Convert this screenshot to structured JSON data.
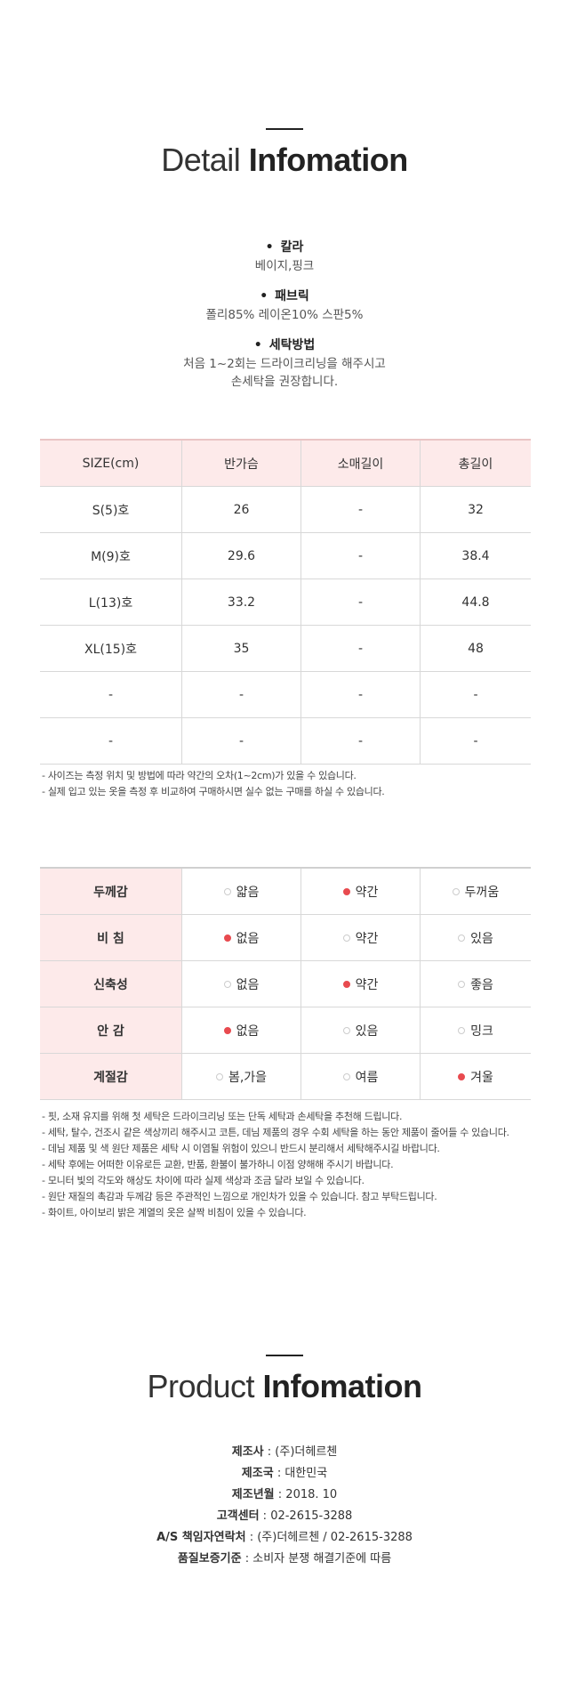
{
  "detail": {
    "title_light": "Detail",
    "title_bold": "Infomation",
    "specs": [
      {
        "label": "칼라",
        "lines": [
          "베이지,핑크"
        ]
      },
      {
        "label": "패브릭",
        "lines": [
          "폴리85% 레이온10% 스판5%"
        ]
      },
      {
        "label": "세탁방법",
        "lines": [
          "처음 1~2회는 드라이크리닝을 해주시고",
          "손세탁을 권장합니다."
        ]
      }
    ]
  },
  "size_table": {
    "headers": [
      "SIZE(cm)",
      "반가슴",
      "소매길이",
      "총길이"
    ],
    "rows": [
      [
        "S(5)호",
        "26",
        "-",
        "32"
      ],
      [
        "M(9)호",
        "29.6",
        "-",
        "38.4"
      ],
      [
        "L(13)호",
        "33.2",
        "-",
        "44.8"
      ],
      [
        "XL(15)호",
        "35",
        "-",
        "48"
      ],
      [
        "-",
        "-",
        "-",
        "-"
      ],
      [
        "-",
        "-",
        "-",
        "-"
      ]
    ],
    "notes": [
      "- 사이즈는 측정 위치 및 방법에 따라 약간의 오차(1~2cm)가 있을 수 있습니다.",
      "- 실제 입고 있는 옷을 측정 후 비교하여 구매하시면 실수 없는 구매를 하실 수 있습니다."
    ]
  },
  "feel_table": {
    "rows": [
      {
        "label": "두께감",
        "options": [
          "얇음",
          "약간",
          "두꺼움"
        ],
        "selected": 1
      },
      {
        "label": "비 침",
        "options": [
          "없음",
          "약간",
          "있음"
        ],
        "selected": 0
      },
      {
        "label": "신축성",
        "options": [
          "없음",
          "약간",
          "좋음"
        ],
        "selected": 1
      },
      {
        "label": "안 감",
        "options": [
          "없음",
          "있음",
          "밍크"
        ],
        "selected": 0
      },
      {
        "label": "계절감",
        "options": [
          "봄,가을",
          "여름",
          "겨울"
        ],
        "selected": 2
      }
    ],
    "accent_color": "#e84a4f",
    "notes": [
      "- 핏, 소재 유지를 위해 첫 세탁은 드라이크리닝 또는 단독 세탁과 손세탁을 추천해 드립니다.",
      "- 세탁, 탈수, 건조시 같은 색상끼리 해주시고 코튼, 데님 제품의 경우 수회 세탁을 하는 동안 제품이 줄어들 수 있습니다.",
      "- 데님 제품 및 색 원단 제품은 세탁 시 이염될 위험이 있으니 반드시 분리해서 세탁해주시길 바랍니다.",
      "- 세탁 후에는 어떠한 이유로든 교환, 반품, 환불이 불가하니 이점 양해해 주시기 바랍니다.",
      "- 모니터 빛의 각도와 해상도 차이에 따라 실제 색상과 조금 달라 보일 수 있습니다.",
      "- 원단 재질의 촉감과 두께감 등은 주관적인 느낌으로 개인차가 있을 수 있습니다. 참고 부탁드립니다.",
      "- 화이트, 아이보리 밝은 계열의 옷은 살짝 비침이 있을 수 있습니다."
    ]
  },
  "product": {
    "title_light": "Product",
    "title_bold": "Infomation",
    "items": [
      {
        "key": "제조사",
        "value": "(주)더헤르첸"
      },
      {
        "key": "제조국",
        "value": "대한민국"
      },
      {
        "key": "제조년월",
        "value": "2018. 10"
      },
      {
        "key": "고객센터",
        "value": "02-2615-3288"
      },
      {
        "key": "A/S 책임자연락처",
        "value": "(주)더헤르첸 / 02-2615-3288"
      },
      {
        "key": "품질보증기준",
        "value": "소비자 분쟁 해결기준에 따름"
      }
    ]
  }
}
